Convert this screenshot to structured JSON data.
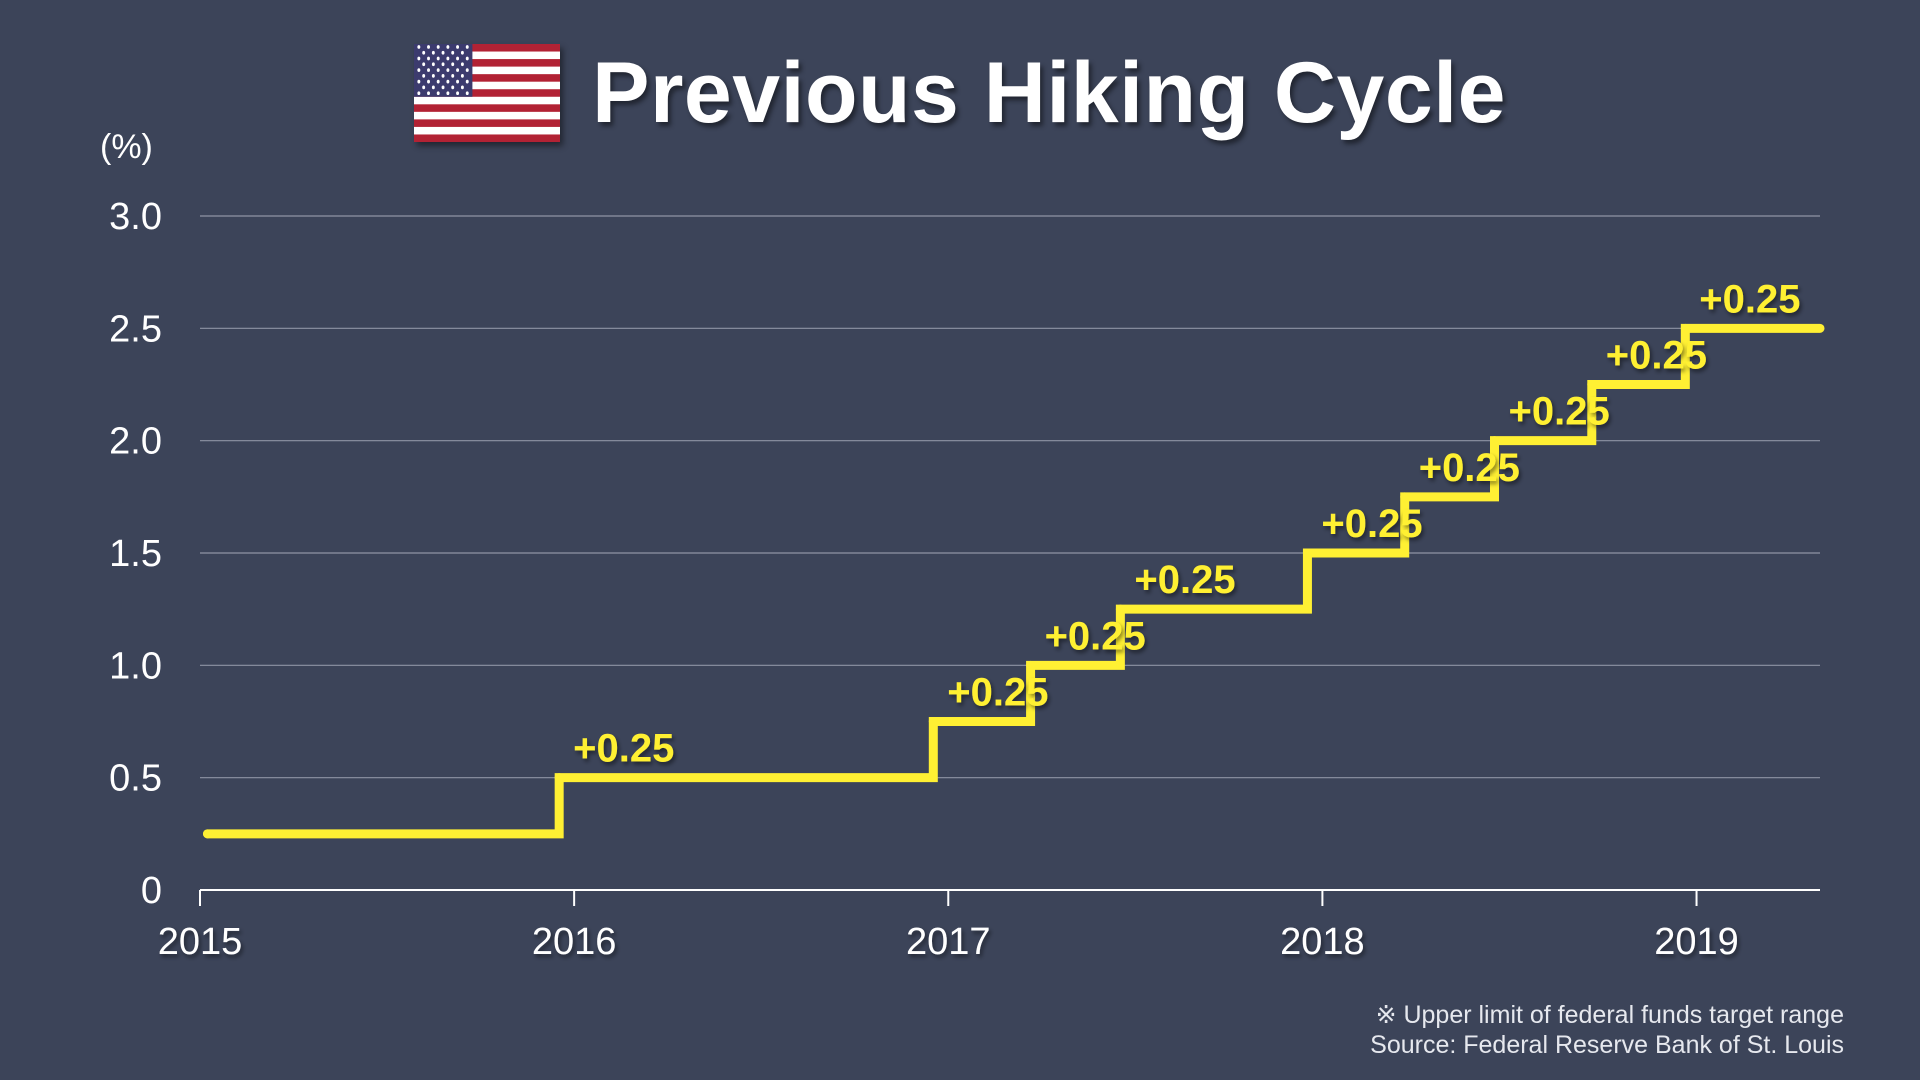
{
  "header": {
    "title": "Previous Hiking Cycle",
    "flag_icon": "us-flag-icon"
  },
  "footnotes": {
    "note": "※ Upper limit of federal funds target range",
    "source": "Source: Federal Reserve Bank of St. Louis"
  },
  "colors": {
    "background": "#3c4459",
    "line": "#fff033",
    "grid": "#8e94a5",
    "axis": "#ffffff",
    "label": "#ffffff"
  },
  "chart_data": {
    "type": "line",
    "step": true,
    "title": "Previous Hiking Cycle",
    "ylabel": "(%)",
    "xlabel": "",
    "xlim": [
      2015,
      2019.33
    ],
    "ylim": [
      0,
      3.0
    ],
    "y_ticks": [
      {
        "value": 0,
        "label": "0"
      },
      {
        "value": 0.5,
        "label": "0.5"
      },
      {
        "value": 1.0,
        "label": "1.0"
      },
      {
        "value": 1.5,
        "label": "1.5"
      },
      {
        "value": 2.0,
        "label": "2.0"
      },
      {
        "value": 2.5,
        "label": "2.5"
      },
      {
        "value": 3.0,
        "label": "3.0"
      }
    ],
    "x_ticks": [
      {
        "value": 2015,
        "label": "2015"
      },
      {
        "value": 2016,
        "label": "2016"
      },
      {
        "value": 2017,
        "label": "2017"
      },
      {
        "value": 2018,
        "label": "2018"
      },
      {
        "value": 2019,
        "label": "2019"
      }
    ],
    "grid": true,
    "series": [
      {
        "points": [
          {
            "x": 2015.02,
            "y": 0.25
          },
          {
            "x": 2015.96,
            "y": 0.5
          },
          {
            "x": 2016.96,
            "y": 0.75
          },
          {
            "x": 2017.22,
            "y": 1.0
          },
          {
            "x": 2017.46,
            "y": 1.25
          },
          {
            "x": 2017.96,
            "y": 1.5
          },
          {
            "x": 2018.22,
            "y": 1.75
          },
          {
            "x": 2018.46,
            "y": 2.0
          },
          {
            "x": 2018.72,
            "y": 2.25
          },
          {
            "x": 2018.97,
            "y": 2.5
          }
        ],
        "end_x": 2019.33
      }
    ],
    "annotations": [
      {
        "x": 2015.96,
        "y": 0.5,
        "text": "+0.25"
      },
      {
        "x": 2016.96,
        "y": 0.75,
        "text": "+0.25"
      },
      {
        "x": 2017.22,
        "y": 1.0,
        "text": "+0.25"
      },
      {
        "x": 2017.46,
        "y": 1.25,
        "text": "+0.25"
      },
      {
        "x": 2017.96,
        "y": 1.5,
        "text": "+0.25"
      },
      {
        "x": 2018.22,
        "y": 1.75,
        "text": "+0.25"
      },
      {
        "x": 2018.46,
        "y": 2.0,
        "text": "+0.25"
      },
      {
        "x": 2018.72,
        "y": 2.25,
        "text": "+0.25"
      },
      {
        "x": 2018.97,
        "y": 2.5,
        "text": "+0.25"
      }
    ]
  }
}
